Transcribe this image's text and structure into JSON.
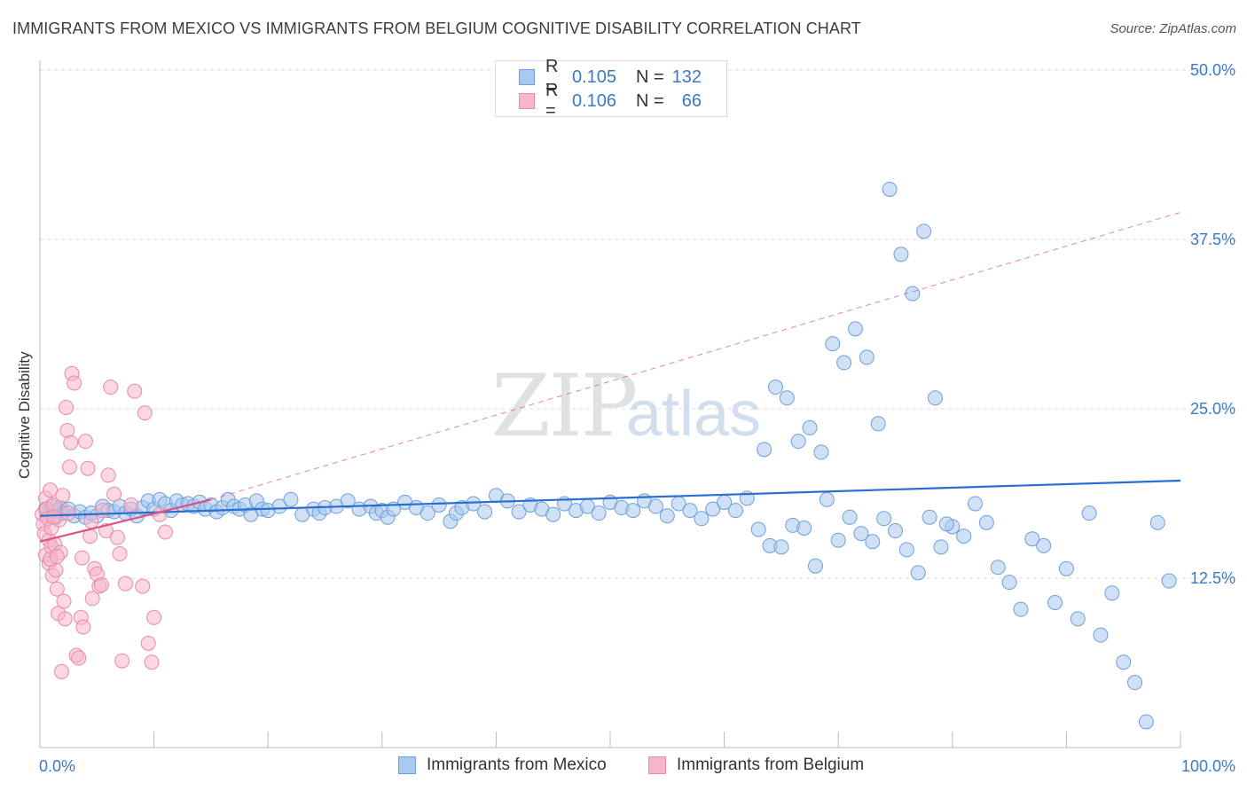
{
  "header": {
    "title": "IMMIGRANTS FROM MEXICO VS IMMIGRANTS FROM BELGIUM COGNITIVE DISABILITY CORRELATION CHART",
    "source": "Source: ZipAtlas.com"
  },
  "watermark": {
    "zip": "ZIP",
    "atlas": "atlas"
  },
  "legend_top": {
    "mexico": {
      "r_label": "R = ",
      "r_value": "0.105",
      "n_label": "N = ",
      "n_value": "132"
    },
    "belgium": {
      "r_label": "R = ",
      "r_value": "0.106",
      "n_label": "N = ",
      "n_value": "66"
    }
  },
  "colors": {
    "mexico_fill": "#a9c8ef",
    "mexico_stroke": "#6e9fdc",
    "mexico_line": "#2a6fcf",
    "belgium_fill": "#f6b6c9",
    "belgium_stroke": "#e98aa8",
    "belgium_line": "#e05286",
    "tick_label": "#3b78c8",
    "grid": "#dddddd"
  },
  "chart_data": {
    "type": "scatter",
    "title": "IMMIGRANTS FROM MEXICO VS IMMIGRANTS FROM BELGIUM COGNITIVE DISABILITY CORRELATION CHART",
    "xlabel": "",
    "ylabel": "Cognitive Disability",
    "xlim": [
      0,
      100
    ],
    "ylim": [
      0,
      50
    ],
    "x_ticks": [
      "0.0%",
      "100.0%"
    ],
    "y_ticks": [
      {
        "value": 12.5,
        "label": "12.5%"
      },
      {
        "value": 25.0,
        "label": "25.0%"
      },
      {
        "value": 37.5,
        "label": "37.5%"
      },
      {
        "value": 50.0,
        "label": "50.0%"
      }
    ],
    "legend_position": "bottom-center",
    "series": [
      {
        "name": "Immigrants from Mexico",
        "r": 0.105,
        "n": 132,
        "trend": {
          "x": [
            0,
            100
          ],
          "y": [
            17.1,
            19.7
          ],
          "style": "solid"
        },
        "points": [
          [
            0.5,
            17.6
          ],
          [
            0.8,
            17.2
          ],
          [
            1.0,
            17.8
          ],
          [
            1.2,
            17.4
          ],
          [
            1.4,
            17.0
          ],
          [
            1.6,
            17.5
          ],
          [
            1.8,
            17.7
          ],
          [
            2.0,
            17.3
          ],
          [
            2.5,
            17.6
          ],
          [
            3.0,
            17.1
          ],
          [
            3.5,
            17.4
          ],
          [
            4.0,
            17.0
          ],
          [
            4.5,
            17.3
          ],
          [
            5.0,
            17.1
          ],
          [
            5.5,
            17.8
          ],
          [
            6.0,
            17.5
          ],
          [
            6.5,
            17.4
          ],
          [
            7.0,
            17.8
          ],
          [
            7.5,
            17.3
          ],
          [
            8.0,
            17.6
          ],
          [
            8.5,
            17.1
          ],
          [
            9.0,
            17.7
          ],
          [
            9.5,
            18.2
          ],
          [
            10.0,
            17.6
          ],
          [
            10.5,
            18.3
          ],
          [
            11.0,
            18.0
          ],
          [
            11.5,
            17.5
          ],
          [
            12.0,
            18.2
          ],
          [
            12.5,
            17.9
          ],
          [
            13.0,
            18.0
          ],
          [
            13.5,
            17.8
          ],
          [
            14.0,
            18.1
          ],
          [
            14.5,
            17.6
          ],
          [
            15.0,
            17.9
          ],
          [
            15.5,
            17.4
          ],
          [
            16.0,
            17.7
          ],
          [
            16.5,
            18.3
          ],
          [
            17.0,
            17.8
          ],
          [
            17.5,
            17.6
          ],
          [
            18.0,
            17.9
          ],
          [
            18.5,
            17.2
          ],
          [
            19.0,
            18.2
          ],
          [
            19.5,
            17.6
          ],
          [
            20.0,
            17.5
          ],
          [
            21.0,
            17.8
          ],
          [
            22.0,
            18.3
          ],
          [
            23.0,
            17.2
          ],
          [
            24.0,
            17.6
          ],
          [
            24.5,
            17.3
          ],
          [
            25.0,
            17.7
          ],
          [
            26.0,
            17.8
          ],
          [
            27.0,
            18.2
          ],
          [
            28.0,
            17.6
          ],
          [
            29.0,
            17.8
          ],
          [
            29.5,
            17.3
          ],
          [
            30.0,
            17.5
          ],
          [
            30.5,
            17.0
          ],
          [
            31.0,
            17.6
          ],
          [
            32.0,
            18.1
          ],
          [
            33.0,
            17.7
          ],
          [
            34.0,
            17.3
          ],
          [
            35.0,
            17.9
          ],
          [
            36.0,
            16.7
          ],
          [
            36.5,
            17.3
          ],
          [
            37.0,
            17.7
          ],
          [
            38.0,
            18.0
          ],
          [
            39.0,
            17.4
          ],
          [
            40.0,
            18.6
          ],
          [
            41.0,
            18.2
          ],
          [
            42.0,
            17.4
          ],
          [
            43.0,
            17.9
          ],
          [
            44.0,
            17.6
          ],
          [
            45.0,
            17.2
          ],
          [
            46.0,
            18.0
          ],
          [
            47.0,
            17.5
          ],
          [
            48.0,
            17.8
          ],
          [
            49.0,
            17.3
          ],
          [
            50.0,
            18.1
          ],
          [
            51.0,
            17.7
          ],
          [
            52.0,
            17.5
          ],
          [
            53.0,
            18.2
          ],
          [
            54.0,
            17.8
          ],
          [
            55.0,
            17.1
          ],
          [
            56.0,
            18.0
          ],
          [
            57.0,
            17.5
          ],
          [
            58.0,
            16.9
          ],
          [
            59.0,
            17.6
          ],
          [
            60.0,
            18.1
          ],
          [
            61.0,
            17.5
          ],
          [
            62.0,
            18.4
          ],
          [
            63.0,
            16.1
          ],
          [
            64.0,
            14.9
          ],
          [
            65.0,
            14.8
          ],
          [
            66.0,
            16.4
          ],
          [
            67.0,
            16.2
          ],
          [
            68.0,
            13.4
          ],
          [
            69.0,
            18.3
          ],
          [
            70.0,
            15.3
          ],
          [
            71.0,
            17.0
          ],
          [
            72.0,
            15.8
          ],
          [
            73.0,
            15.2
          ],
          [
            74.0,
            16.9
          ],
          [
            75.0,
            16.0
          ],
          [
            76.0,
            14.6
          ],
          [
            77.0,
            12.9
          ],
          [
            78.0,
            17.0
          ],
          [
            79.0,
            14.8
          ],
          [
            80.0,
            16.3
          ],
          [
            81.0,
            15.6
          ],
          [
            82.0,
            18.0
          ],
          [
            83.0,
            16.6
          ],
          [
            84.0,
            13.3
          ],
          [
            85.0,
            12.2
          ],
          [
            86.0,
            10.2
          ],
          [
            87.0,
            15.4
          ],
          [
            88.0,
            14.9
          ],
          [
            89.0,
            10.7
          ],
          [
            90.0,
            13.2
          ],
          [
            91.0,
            9.5
          ],
          [
            92.0,
            17.3
          ],
          [
            93.0,
            8.3
          ],
          [
            94.0,
            11.4
          ],
          [
            95.0,
            6.3
          ],
          [
            96.0,
            4.8
          ],
          [
            97.0,
            1.9
          ],
          [
            98.0,
            16.6
          ],
          [
            99.0,
            12.3
          ],
          [
            63.5,
            22.0
          ],
          [
            64.5,
            26.6
          ],
          [
            65.5,
            25.8
          ],
          [
            66.5,
            22.6
          ],
          [
            67.5,
            23.6
          ],
          [
            68.5,
            21.8
          ],
          [
            69.5,
            29.8
          ],
          [
            70.5,
            28.4
          ],
          [
            71.5,
            30.9
          ],
          [
            72.5,
            28.8
          ],
          [
            73.5,
            23.9
          ],
          [
            74.5,
            41.2
          ],
          [
            75.5,
            36.4
          ],
          [
            76.5,
            33.5
          ],
          [
            77.5,
            38.1
          ],
          [
            78.5,
            25.8
          ],
          [
            79.5,
            16.5
          ]
        ]
      },
      {
        "name": "Immigrants from Belgium",
        "r": 0.106,
        "n": 66,
        "trend": {
          "x": [
            0,
            15
          ],
          "y": [
            15.2,
            18.3
          ],
          "style": "solid",
          "extended": {
            "x": [
              15,
              100
            ],
            "y": [
              18.3,
              39.5
            ],
            "style": "dashed"
          }
        },
        "points": [
          [
            0.2,
            17.2
          ],
          [
            0.3,
            16.5
          ],
          [
            0.4,
            15.8
          ],
          [
            0.5,
            18.4
          ],
          [
            0.5,
            14.2
          ],
          [
            0.6,
            17.6
          ],
          [
            0.7,
            16.9
          ],
          [
            0.8,
            15.3
          ],
          [
            0.8,
            13.6
          ],
          [
            0.9,
            19.0
          ],
          [
            1.0,
            16.2
          ],
          [
            1.0,
            14.8
          ],
          [
            1.1,
            12.7
          ],
          [
            1.2,
            17.9
          ],
          [
            1.3,
            15.0
          ],
          [
            1.4,
            13.1
          ],
          [
            1.5,
            11.7
          ],
          [
            1.6,
            9.9
          ],
          [
            1.7,
            16.8
          ],
          [
            1.8,
            14.4
          ],
          [
            2.0,
            18.6
          ],
          [
            2.1,
            10.8
          ],
          [
            2.2,
            9.5
          ],
          [
            2.3,
            25.1
          ],
          [
            2.4,
            23.4
          ],
          [
            2.5,
            17.3
          ],
          [
            2.6,
            20.7
          ],
          [
            2.8,
            27.6
          ],
          [
            3.0,
            26.9
          ],
          [
            3.2,
            6.8
          ],
          [
            3.4,
            6.6
          ],
          [
            3.6,
            9.6
          ],
          [
            3.8,
            8.9
          ],
          [
            4.0,
            22.6
          ],
          [
            4.2,
            20.6
          ],
          [
            4.4,
            15.6
          ],
          [
            4.5,
            16.7
          ],
          [
            4.8,
            13.2
          ],
          [
            5.0,
            12.8
          ],
          [
            5.2,
            11.9
          ],
          [
            5.5,
            17.5
          ],
          [
            5.8,
            16.0
          ],
          [
            6.0,
            20.1
          ],
          [
            6.2,
            26.6
          ],
          [
            6.5,
            18.7
          ],
          [
            6.8,
            15.5
          ],
          [
            7.0,
            14.3
          ],
          [
            7.2,
            6.4
          ],
          [
            7.5,
            12.1
          ],
          [
            8.0,
            17.9
          ],
          [
            9.0,
            11.9
          ],
          [
            9.5,
            7.7
          ],
          [
            9.8,
            6.3
          ],
          [
            10.0,
            9.6
          ],
          [
            10.5,
            17.2
          ],
          [
            11.0,
            15.9
          ],
          [
            8.3,
            26.3
          ],
          [
            9.2,
            24.7
          ],
          [
            1.9,
            5.6
          ],
          [
            2.7,
            22.5
          ],
          [
            3.7,
            14.0
          ],
          [
            4.6,
            11.0
          ],
          [
            5.4,
            12.0
          ],
          [
            0.9,
            13.9
          ],
          [
            1.5,
            14.1
          ],
          [
            1.2,
            17.0
          ]
        ]
      }
    ]
  },
  "legend_bottom": {
    "mexico_label": "Immigrants from Mexico",
    "belgium_label": "Immigrants from Belgium"
  }
}
